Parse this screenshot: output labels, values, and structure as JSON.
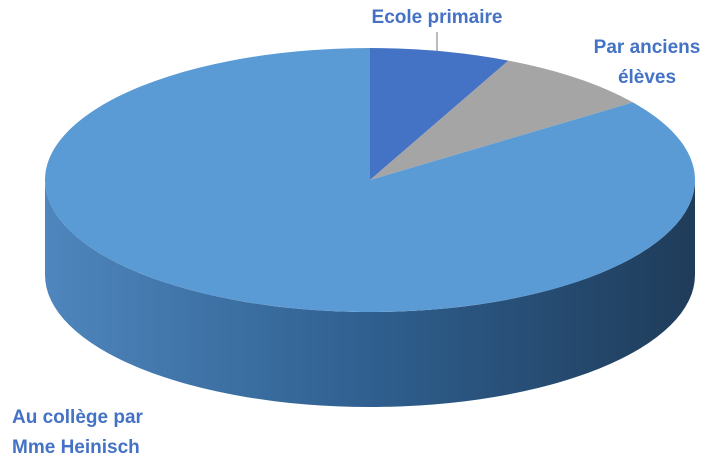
{
  "chart_data": {
    "type": "pie3d",
    "categories": [
      "Ecole primaire",
      "Par anciens élèves",
      "Au collège par Mme Heinisch"
    ],
    "label_lines": [
      [
        "Ecole primaire"
      ],
      [
        "Par anciens",
        "élèves"
      ],
      [
        "Au collège par",
        "Mme Heinisch"
      ]
    ],
    "values": [
      7,
      8,
      85
    ],
    "colors": [
      "#4472c4",
      "#a5a5a5",
      "#5b9bd5"
    ]
  }
}
